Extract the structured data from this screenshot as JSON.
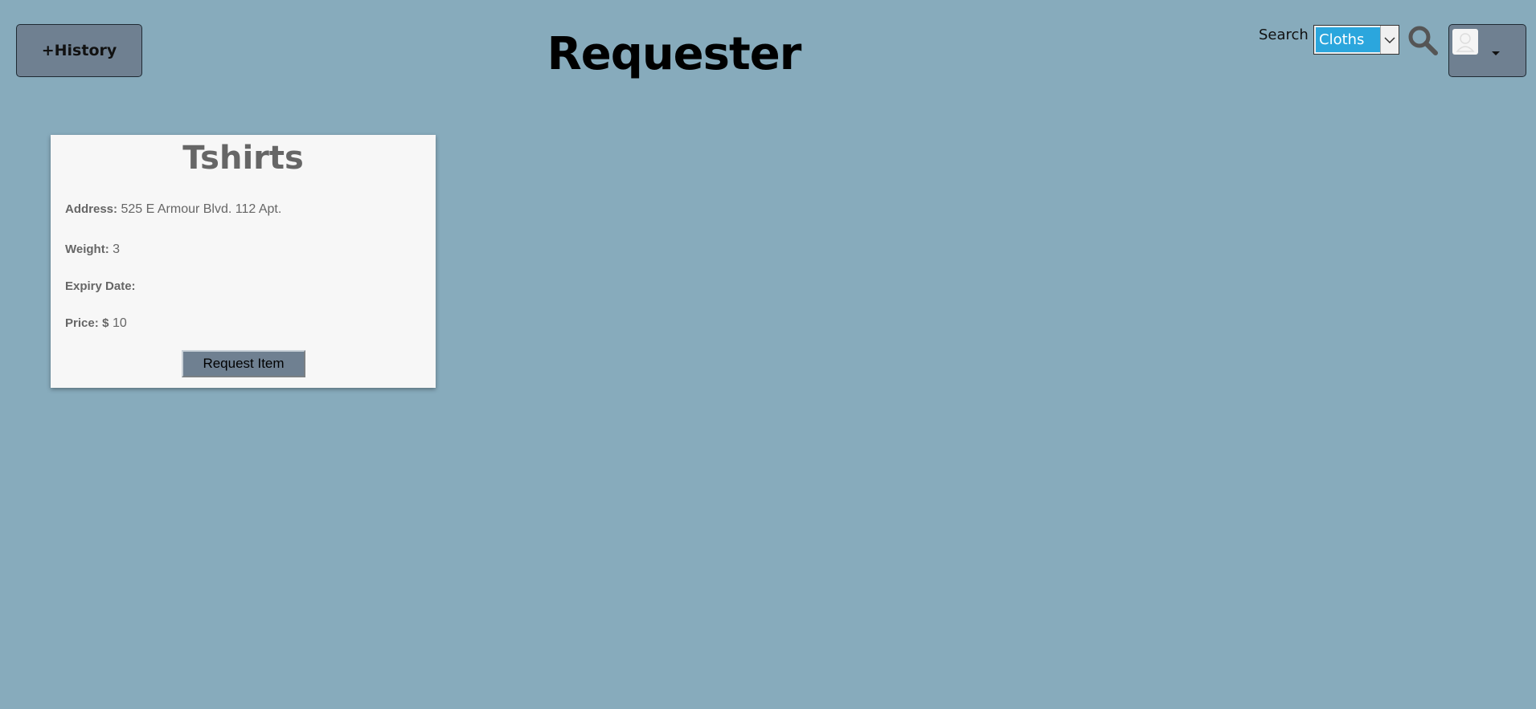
{
  "colors": {
    "background": "#87abbc",
    "button": "#6f8091",
    "select_highlight": "#2ba6dd",
    "card": "#f7f7f7"
  },
  "header": {
    "history_button_label": "+History",
    "title": "Requester",
    "search_label": "Search",
    "search_selected": "Cloths",
    "search_icon": "search-icon",
    "user_icon": "user-avatar-icon"
  },
  "items": [
    {
      "title": "Tshirts",
      "address_label": "Address:",
      "address": "525 E Armour Blvd. 112 Apt.",
      "weight_label": "Weight:",
      "weight": "3",
      "expiry_label": "Expiry Date:",
      "expiry": "",
      "price_label": "Price:",
      "price_prefix": "$",
      "price": "10",
      "request_button_label": "Request Item"
    }
  ]
}
